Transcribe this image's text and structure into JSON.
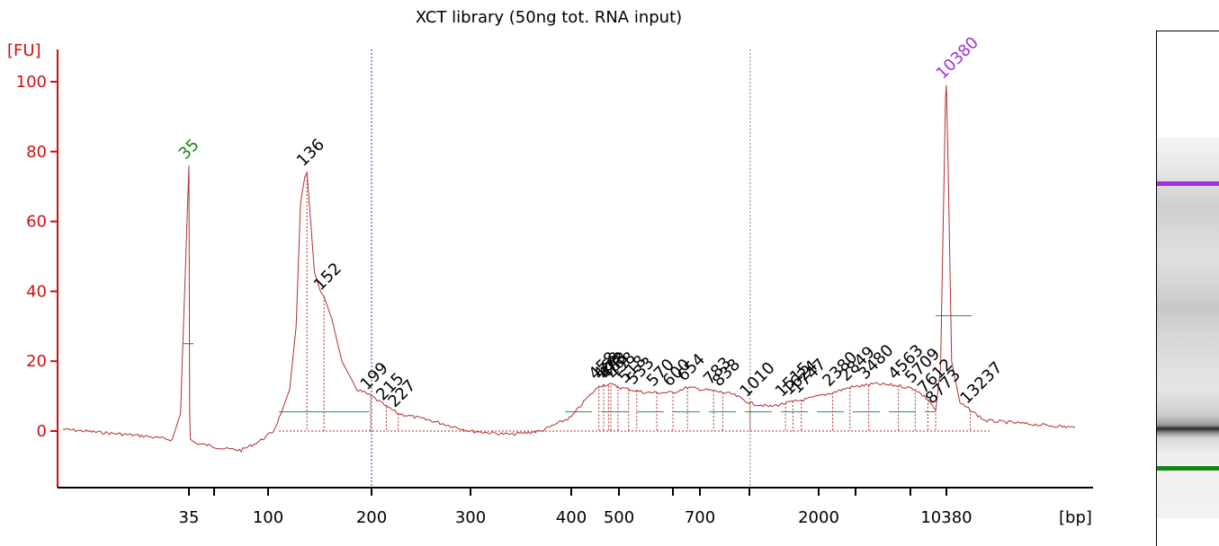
{
  "chart_data": {
    "type": "line",
    "title": "XCT library (50ng tot. RNA input)",
    "ylabel": "[FU]",
    "xlabel": "[bp]",
    "ylim": [
      -15,
      110
    ],
    "yticks": [
      0,
      20,
      40,
      60,
      80,
      100
    ],
    "x_tick_labels": [
      "35",
      "100",
      "200",
      "300",
      "400",
      "500",
      "700",
      "2000",
      "10380"
    ],
    "colors": {
      "trace": "#b03030",
      "axis": "#d01010",
      "marker_low": "#118811",
      "marker_high": "#a030e0",
      "text": "#000000"
    },
    "series": [
      {
        "points_bp_fu": [
          [
            20,
            0.5
          ],
          [
            30,
            -1.5
          ],
          [
            33,
            -2.5
          ],
          [
            34,
            5
          ],
          [
            35,
            76
          ],
          [
            36,
            5
          ],
          [
            37,
            -2.5
          ],
          [
            45,
            -3.5
          ],
          [
            60,
            -4
          ],
          [
            75,
            -5
          ],
          [
            85,
            -5.5
          ],
          [
            95,
            -3
          ],
          [
            105,
            0
          ],
          [
            112,
            5
          ],
          [
            120,
            12
          ],
          [
            126,
            30
          ],
          [
            130,
            65
          ],
          [
            134,
            73
          ],
          [
            136,
            74
          ],
          [
            139,
            62
          ],
          [
            143,
            45
          ],
          [
            148,
            40
          ],
          [
            152,
            38.5
          ],
          [
            160,
            32
          ],
          [
            170,
            20
          ],
          [
            185,
            12
          ],
          [
            200,
            10
          ],
          [
            215,
            7
          ],
          [
            227,
            5
          ],
          [
            260,
            3
          ],
          [
            300,
            0
          ],
          [
            340,
            -1
          ],
          [
            370,
            0
          ],
          [
            400,
            4
          ],
          [
            430,
            9
          ],
          [
            460,
            13
          ],
          [
            480,
            13.5
          ],
          [
            500,
            12.5
          ],
          [
            550,
            11
          ],
          [
            600,
            11
          ],
          [
            654,
            12.5
          ],
          [
            783,
            11.5
          ],
          [
            900,
            10.5
          ],
          [
            1010,
            8
          ],
          [
            1300,
            7
          ],
          [
            1515,
            8
          ],
          [
            1800,
            9
          ],
          [
            2380,
            11
          ],
          [
            2849,
            12.5
          ],
          [
            3700,
            13.5
          ],
          [
            4563,
            13
          ],
          [
            5709,
            12
          ],
          [
            7612,
            9
          ],
          [
            8773,
            6
          ],
          [
            9500,
            18
          ],
          [
            10000,
            70
          ],
          [
            10250,
            95
          ],
          [
            10380,
            99
          ],
          [
            10600,
            75
          ],
          [
            11000,
            20
          ],
          [
            12000,
            8
          ],
          [
            13237,
            6
          ],
          [
            15000,
            3
          ],
          [
            20000,
            1
          ]
        ]
      }
    ],
    "peaks": [
      {
        "label": "35",
        "bp": 35,
        "fu": 76,
        "kind": "marker_low"
      },
      {
        "label": "136",
        "bp": 136,
        "fu": 74
      },
      {
        "label": "152",
        "bp": 152,
        "fu": 38.5
      },
      {
        "label": "199",
        "bp": 199,
        "fu": 10
      },
      {
        "label": "215",
        "bp": 215,
        "fu": 7
      },
      {
        "label": "227",
        "bp": 227,
        "fu": 5
      },
      {
        "label": "458",
        "bp": 458,
        "fu": 13
      },
      {
        "label": "468",
        "bp": 468,
        "fu": 13
      },
      {
        "label": "478",
        "bp": 478,
        "fu": 13
      },
      {
        "label": "483",
        "bp": 483,
        "fu": 13
      },
      {
        "label": "498",
        "bp": 498,
        "fu": 13
      },
      {
        "label": "518",
        "bp": 518,
        "fu": 12
      },
      {
        "label": "533",
        "bp": 533,
        "fu": 11.5
      },
      {
        "label": "570",
        "bp": 570,
        "fu": 11
      },
      {
        "label": "600",
        "bp": 600,
        "fu": 11
      },
      {
        "label": "654",
        "bp": 654,
        "fu": 12.5
      },
      {
        "label": "783",
        "bp": 783,
        "fu": 11.5
      },
      {
        "label": "838",
        "bp": 838,
        "fu": 11
      },
      {
        "label": "1010",
        "bp": 1010,
        "fu": 8
      },
      {
        "label": "1515",
        "bp": 1515,
        "fu": 8
      },
      {
        "label": "1624",
        "bp": 1624,
        "fu": 8.5
      },
      {
        "label": "1747",
        "bp": 1747,
        "fu": 9
      },
      {
        "label": "2380",
        "bp": 2380,
        "fu": 11
      },
      {
        "label": "2849",
        "bp": 2849,
        "fu": 12.5
      },
      {
        "label": "3480",
        "bp": 3480,
        "fu": 13
      },
      {
        "label": "4563",
        "bp": 4563,
        "fu": 13
      },
      {
        "label": "5709",
        "bp": 5709,
        "fu": 12
      },
      {
        "label": "7612",
        "bp": 7612,
        "fu": 9
      },
      {
        "label": "8773",
        "bp": 8773,
        "fu": 6
      },
      {
        "label": "10380",
        "bp": 10380,
        "fu": 99,
        "kind": "marker_high"
      },
      {
        "label": "13237",
        "bp": 13237,
        "fu": 6
      }
    ],
    "vertical_guides_bp": [
      200,
      1010
    ],
    "legend": "none",
    "grid": false
  }
}
